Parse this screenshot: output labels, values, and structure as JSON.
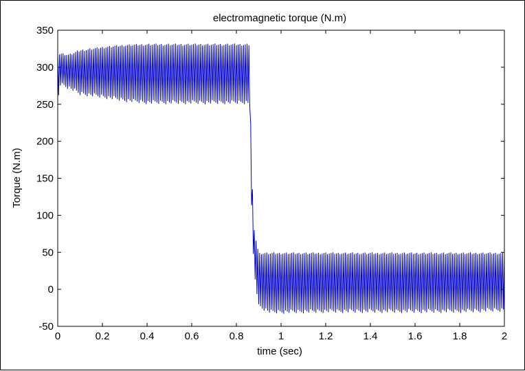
{
  "chart_data": {
    "type": "line",
    "title": "electromagnetic torque (N.m)",
    "xlabel": "time (sec)",
    "ylabel": "Torque (N.m)",
    "xlim": [
      0,
      2
    ],
    "ylim": [
      -50,
      350
    ],
    "xticks": [
      0,
      0.2,
      0.4,
      0.6,
      0.8,
      1,
      1.2,
      1.4,
      1.6,
      1.8,
      2
    ],
    "xtick_labels": [
      "0",
      "0.2",
      "0.4",
      "0.6",
      "0.8",
      "1",
      "1.2",
      "1.4",
      "1.6",
      "1.8",
      "2"
    ],
    "yticks": [
      350,
      300,
      250,
      200,
      150,
      100,
      50,
      0,
      -50
    ],
    "ytick_labels": [
      "350",
      "300",
      "250",
      "200",
      "150",
      "100",
      "50",
      "0",
      "-50"
    ],
    "grid": false,
    "series": [
      {
        "name": "electromagnetic torque",
        "color": "#0000cc",
        "envelope": {
          "t": [
            0,
            0.01,
            0.05,
            0.1,
            0.2,
            0.3,
            0.4,
            0.5,
            0.6,
            0.7,
            0.8,
            0.85,
            0.86,
            0.865,
            0.87,
            0.88,
            0.9,
            0.95,
            1.0,
            1.2,
            1.5,
            1.8,
            2.0
          ],
          "upper": [
            318,
            320,
            318,
            324,
            328,
            331,
            332,
            332,
            332,
            332,
            332,
            332,
            332,
            200,
            150,
            80,
            50,
            50,
            50,
            50,
            50,
            50,
            50
          ],
          "lower": [
            250,
            275,
            270,
            262,
            258,
            253,
            250,
            250,
            250,
            250,
            250,
            250,
            245,
            150,
            80,
            20,
            -25,
            -33,
            -33,
            -32,
            -32,
            -32,
            -30
          ]
        },
        "oscillation_period_sec": 0.008
      }
    ]
  }
}
